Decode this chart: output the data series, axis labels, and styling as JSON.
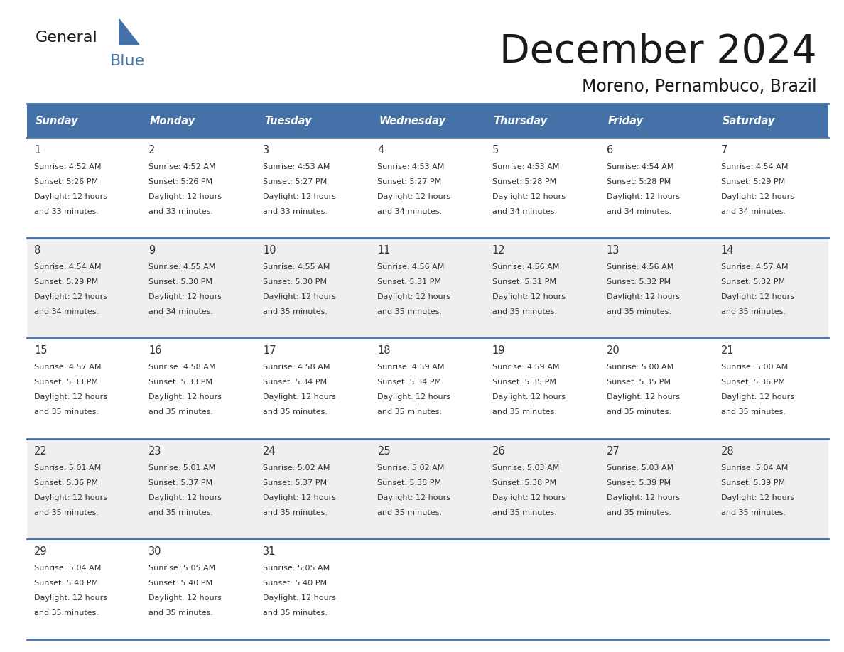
{
  "title": "December 2024",
  "subtitle": "Moreno, Pernambuco, Brazil",
  "days_of_week": [
    "Sunday",
    "Monday",
    "Tuesday",
    "Wednesday",
    "Thursday",
    "Friday",
    "Saturday"
  ],
  "header_bg": "#4472A8",
  "header_text": "#FFFFFF",
  "cell_bg_odd": "#FFFFFF",
  "cell_bg_even": "#EFEFEF",
  "divider_color": "#4472A8",
  "text_color": "#333333",
  "calendar_data": [
    [
      {
        "day": 1,
        "sunrise": "4:52 AM",
        "sunset": "5:26 PM",
        "daylight": "12 hours\nand 33 minutes."
      },
      {
        "day": 2,
        "sunrise": "4:52 AM",
        "sunset": "5:26 PM",
        "daylight": "12 hours\nand 33 minutes."
      },
      {
        "day": 3,
        "sunrise": "4:53 AM",
        "sunset": "5:27 PM",
        "daylight": "12 hours\nand 33 minutes."
      },
      {
        "day": 4,
        "sunrise": "4:53 AM",
        "sunset": "5:27 PM",
        "daylight": "12 hours\nand 34 minutes."
      },
      {
        "day": 5,
        "sunrise": "4:53 AM",
        "sunset": "5:28 PM",
        "daylight": "12 hours\nand 34 minutes."
      },
      {
        "day": 6,
        "sunrise": "4:54 AM",
        "sunset": "5:28 PM",
        "daylight": "12 hours\nand 34 minutes."
      },
      {
        "day": 7,
        "sunrise": "4:54 AM",
        "sunset": "5:29 PM",
        "daylight": "12 hours\nand 34 minutes."
      }
    ],
    [
      {
        "day": 8,
        "sunrise": "4:54 AM",
        "sunset": "5:29 PM",
        "daylight": "12 hours\nand 34 minutes."
      },
      {
        "day": 9,
        "sunrise": "4:55 AM",
        "sunset": "5:30 PM",
        "daylight": "12 hours\nand 34 minutes."
      },
      {
        "day": 10,
        "sunrise": "4:55 AM",
        "sunset": "5:30 PM",
        "daylight": "12 hours\nand 35 minutes."
      },
      {
        "day": 11,
        "sunrise": "4:56 AM",
        "sunset": "5:31 PM",
        "daylight": "12 hours\nand 35 minutes."
      },
      {
        "day": 12,
        "sunrise": "4:56 AM",
        "sunset": "5:31 PM",
        "daylight": "12 hours\nand 35 minutes."
      },
      {
        "day": 13,
        "sunrise": "4:56 AM",
        "sunset": "5:32 PM",
        "daylight": "12 hours\nand 35 minutes."
      },
      {
        "day": 14,
        "sunrise": "4:57 AM",
        "sunset": "5:32 PM",
        "daylight": "12 hours\nand 35 minutes."
      }
    ],
    [
      {
        "day": 15,
        "sunrise": "4:57 AM",
        "sunset": "5:33 PM",
        "daylight": "12 hours\nand 35 minutes."
      },
      {
        "day": 16,
        "sunrise": "4:58 AM",
        "sunset": "5:33 PM",
        "daylight": "12 hours\nand 35 minutes."
      },
      {
        "day": 17,
        "sunrise": "4:58 AM",
        "sunset": "5:34 PM",
        "daylight": "12 hours\nand 35 minutes."
      },
      {
        "day": 18,
        "sunrise": "4:59 AM",
        "sunset": "5:34 PM",
        "daylight": "12 hours\nand 35 minutes."
      },
      {
        "day": 19,
        "sunrise": "4:59 AM",
        "sunset": "5:35 PM",
        "daylight": "12 hours\nand 35 minutes."
      },
      {
        "day": 20,
        "sunrise": "5:00 AM",
        "sunset": "5:35 PM",
        "daylight": "12 hours\nand 35 minutes."
      },
      {
        "day": 21,
        "sunrise": "5:00 AM",
        "sunset": "5:36 PM",
        "daylight": "12 hours\nand 35 minutes."
      }
    ],
    [
      {
        "day": 22,
        "sunrise": "5:01 AM",
        "sunset": "5:36 PM",
        "daylight": "12 hours\nand 35 minutes."
      },
      {
        "day": 23,
        "sunrise": "5:01 AM",
        "sunset": "5:37 PM",
        "daylight": "12 hours\nand 35 minutes."
      },
      {
        "day": 24,
        "sunrise": "5:02 AM",
        "sunset": "5:37 PM",
        "daylight": "12 hours\nand 35 minutes."
      },
      {
        "day": 25,
        "sunrise": "5:02 AM",
        "sunset": "5:38 PM",
        "daylight": "12 hours\nand 35 minutes."
      },
      {
        "day": 26,
        "sunrise": "5:03 AM",
        "sunset": "5:38 PM",
        "daylight": "12 hours\nand 35 minutes."
      },
      {
        "day": 27,
        "sunrise": "5:03 AM",
        "sunset": "5:39 PM",
        "daylight": "12 hours\nand 35 minutes."
      },
      {
        "day": 28,
        "sunrise": "5:04 AM",
        "sunset": "5:39 PM",
        "daylight": "12 hours\nand 35 minutes."
      }
    ],
    [
      {
        "day": 29,
        "sunrise": "5:04 AM",
        "sunset": "5:40 PM",
        "daylight": "12 hours\nand 35 minutes."
      },
      {
        "day": 30,
        "sunrise": "5:05 AM",
        "sunset": "5:40 PM",
        "daylight": "12 hours\nand 35 minutes."
      },
      {
        "day": 31,
        "sunrise": "5:05 AM",
        "sunset": "5:40 PM",
        "daylight": "12 hours\nand 35 minutes."
      },
      null,
      null,
      null,
      null
    ]
  ]
}
